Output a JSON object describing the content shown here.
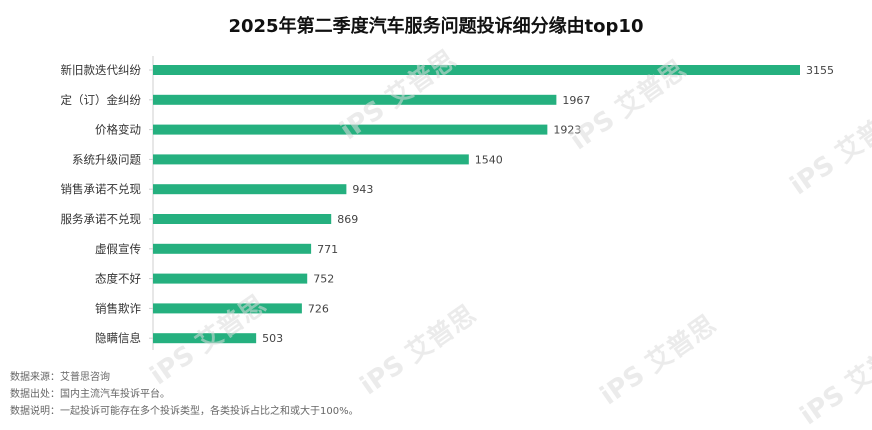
{
  "watermark_text": "iPS 艾普思",
  "chart_data": {
    "type": "bar",
    "orientation": "horizontal",
    "title": "2025年第二季度汽车服务问题投诉细分缘由top10",
    "categories": [
      "新旧款迭代纠纷",
      "定（订）金纠纷",
      "价格变动",
      "系统升级问题",
      "销售承诺不兑现",
      "服务承诺不兑现",
      "虚假宣传",
      "态度不好",
      "销售欺诈",
      "隐瞒信息"
    ],
    "values": [
      3155,
      1967,
      1923,
      1540,
      943,
      869,
      771,
      752,
      726,
      503
    ],
    "xlim": [
      0,
      3155
    ],
    "grid": false,
    "bar_color": "#25b07f"
  },
  "notes": [
    "数据来源：艾普思咨询",
    "数据出处：国内主流汽车投诉平台。",
    "数据说明：一起投诉可能存在多个投诉类型，各类投诉占比之和或大于100%。"
  ]
}
